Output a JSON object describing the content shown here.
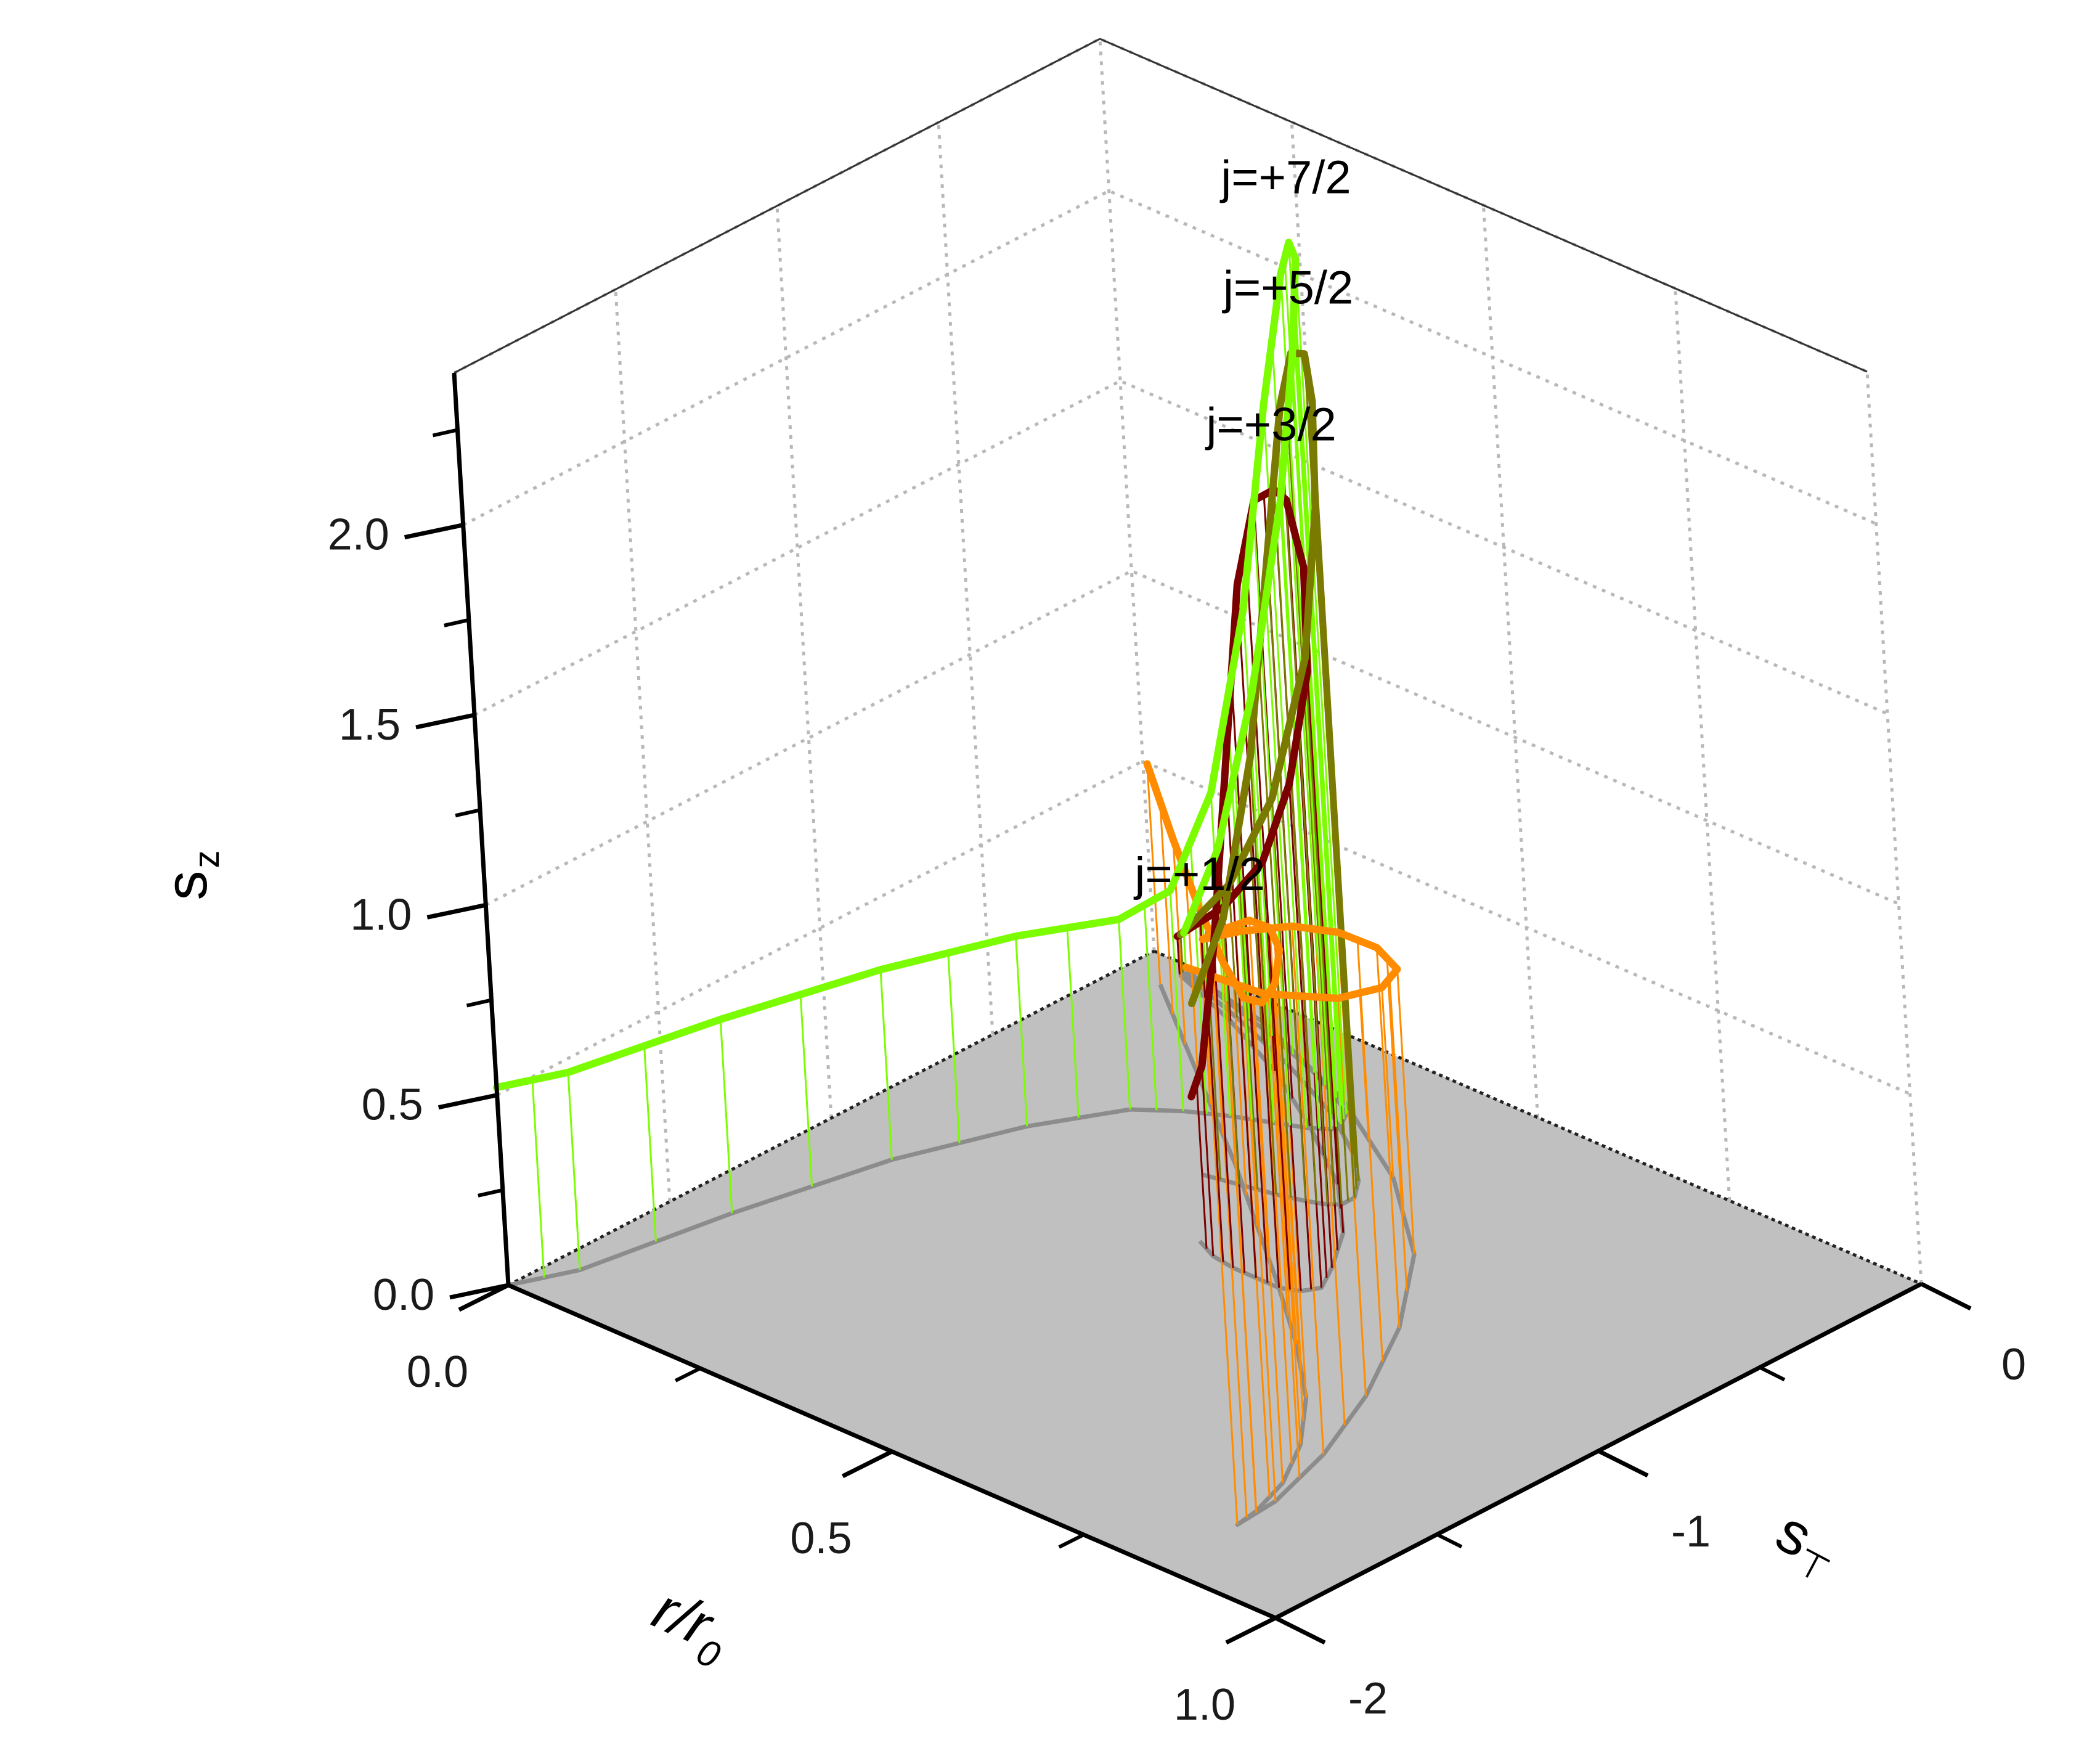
{
  "chart_data": {
    "type": "line",
    "projection": "3d-waterfall",
    "x_axis": {
      "label": "r/r",
      "label_subscript": "0",
      "range": [
        0,
        1
      ],
      "ticks": [
        "0.0",
        "0.5",
        "1.0"
      ]
    },
    "y_axis": {
      "label": "s",
      "label_subscript": "⊤",
      "range": [
        -2,
        0
      ],
      "ticks": [
        "-2",
        "-1",
        "0"
      ]
    },
    "z_axis": {
      "label": "s",
      "label_subscript": "z",
      "range": [
        0,
        2.4
      ],
      "ticks": [
        "0.0",
        "0.5",
        "1.0",
        "1.5",
        "2.0"
      ]
    },
    "grid": true,
    "floor_color": "#c0c0c0",
    "projection_color": "#8c8c8c",
    "series": [
      {
        "name": "j=+1/2",
        "color": "#ff8c00",
        "points": [
          [
            0.05,
            -0.1,
            0.58
          ],
          [
            0.15,
            -0.26,
            0.54
          ],
          [
            0.25,
            -0.42,
            0.52
          ],
          [
            0.35,
            -0.58,
            0.53
          ],
          [
            0.45,
            -0.75,
            0.6
          ],
          [
            0.55,
            -0.92,
            0.75
          ],
          [
            0.64,
            -1.08,
            0.95
          ],
          [
            0.72,
            -1.24,
            1.18
          ],
          [
            0.78,
            -1.4,
            1.36
          ],
          [
            0.82,
            -1.55,
            1.48
          ],
          [
            0.84,
            -1.68,
            1.53
          ],
          [
            0.845,
            -1.75,
            1.54
          ],
          [
            0.84,
            -1.62,
            1.5
          ],
          [
            0.81,
            -1.4,
            1.39
          ],
          [
            0.76,
            -1.15,
            1.22
          ],
          [
            0.69,
            -0.88,
            1.0
          ],
          [
            0.6,
            -0.62,
            0.75
          ],
          [
            0.48,
            -0.4,
            0.5
          ],
          [
            0.34,
            -0.22,
            0.27
          ],
          [
            0.18,
            -0.08,
            0.08
          ],
          [
            0.05,
            -0.02,
            0.01
          ]
        ]
      },
      {
        "name": "j=+3/2",
        "color": "#7b0000",
        "points": [
          [
            0.05,
            -0.04,
            0.1
          ],
          [
            0.15,
            -0.12,
            0.3
          ],
          [
            0.25,
            -0.22,
            0.55
          ],
          [
            0.35,
            -0.35,
            0.9
          ],
          [
            0.45,
            -0.5,
            1.35
          ],
          [
            0.52,
            -0.65,
            1.75
          ],
          [
            0.56,
            -0.78,
            2.02
          ],
          [
            0.58,
            -0.86,
            2.1
          ],
          [
            0.57,
            -0.9,
            2.08
          ],
          [
            0.55,
            -0.92,
            1.85
          ],
          [
            0.52,
            -0.92,
            1.35
          ],
          [
            0.49,
            -0.92,
            0.85
          ],
          [
            0.46,
            -0.91,
            0.5
          ],
          [
            0.43,
            -0.88,
            0.38
          ]
        ]
      },
      {
        "name": "j=+5/2",
        "color": "#7a7a00",
        "points": [
          [
            0.05,
            -0.03,
            0.1
          ],
          [
            0.15,
            -0.1,
            0.35
          ],
          [
            0.25,
            -0.18,
            0.7
          ],
          [
            0.35,
            -0.28,
            1.2
          ],
          [
            0.42,
            -0.38,
            1.7
          ],
          [
            0.46,
            -0.46,
            2.05
          ],
          [
            0.48,
            -0.52,
            2.22
          ],
          [
            0.48,
            -0.56,
            2.24
          ],
          [
            0.47,
            -0.58,
            2.1
          ],
          [
            0.45,
            -0.6,
            1.7
          ],
          [
            0.42,
            -0.62,
            1.15
          ],
          [
            0.38,
            -0.64,
            0.7
          ],
          [
            0.34,
            -0.66,
            0.45
          ]
        ]
      },
      {
        "name": "j=+7/2",
        "color": "#7cfc00",
        "points": [
          [
            0.05,
            -0.02,
            0.1
          ],
          [
            0.12,
            -0.06,
            0.4
          ],
          [
            0.2,
            -0.11,
            0.9
          ],
          [
            0.28,
            -0.17,
            1.5
          ],
          [
            0.33,
            -0.22,
            1.95
          ],
          [
            0.36,
            -0.26,
            2.25
          ],
          [
            0.37,
            -0.3,
            2.32
          ],
          [
            0.37,
            -0.33,
            2.25
          ],
          [
            0.35,
            -0.36,
            1.9
          ],
          [
            0.32,
            -0.39,
            1.35
          ],
          [
            0.28,
            -0.43,
            0.85
          ],
          [
            0.24,
            -0.48,
            0.58
          ],
          [
            0.2,
            -0.55,
            0.5
          ],
          [
            0.15,
            -0.75,
            0.5
          ],
          [
            0.1,
            -1.05,
            0.5
          ],
          [
            0.06,
            -1.45,
            0.51
          ],
          [
            0.03,
            -1.85,
            0.52
          ],
          [
            0.0,
            -2.0,
            0.52
          ]
        ]
      }
    ]
  }
}
